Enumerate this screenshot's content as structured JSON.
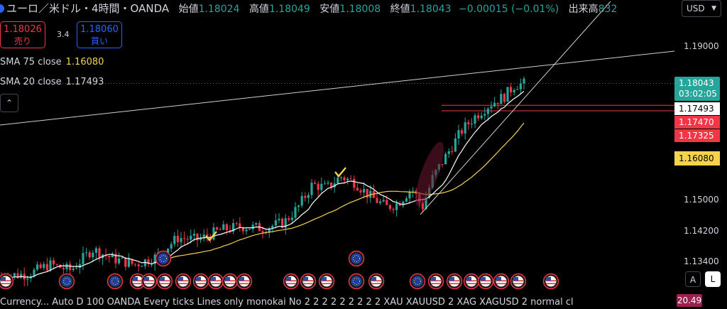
{
  "header": {
    "title": "ユーロ／米ドル・4時間・OANDA",
    "open_label": "始値",
    "open_value": "1.18024",
    "high_label": "高値",
    "high_value": "1.18049",
    "low_label": "安値",
    "low_value": "1.18008",
    "close_label": "終値",
    "close_value": "1.18043",
    "change": "−0.00015 (−0.01%)",
    "volume_label": "出来高",
    "volume_value": "832"
  },
  "trade": {
    "sell_price": "1.18026",
    "sell_label": "売り",
    "spread": "3.4",
    "buy_price": "1.18060",
    "buy_label": "買い"
  },
  "indicators": [
    {
      "name": "SMA 75 close",
      "value": "1.16080",
      "color": "#f5d34d"
    },
    {
      "name": "SMA 20 close",
      "value": "1.17493",
      "color": "#ffffff"
    }
  ],
  "collapse_icon": "chevron-up-icon",
  "currency": "USD",
  "axis_labels": [
    "1.19000",
    "1.15000",
    "1.14200",
    "1.13400"
  ],
  "price_tags": {
    "last_price": "1.18043",
    "countdown": "03:02:05",
    "sma20": "1.17493",
    "level_1": "1.17470",
    "level_2": "1.17325",
    "sma75": "1.16080",
    "last_color": "#26a69a",
    "level_color": "#f23645",
    "sma75_color": "#f5d34d"
  },
  "scale_buttons": {
    "auto_label": "A",
    "log_label": "L"
  },
  "bottom_bar": {
    "text": "Currency... Auto D 100 OANDA Every ticks Lines only monokai No 2 2 2 2 2 2 2 2 2 XAU XAUUSD 2 XAG XAGUSD 2 normal cl",
    "badge": "20.49"
  },
  "chart_data": {
    "type": "candlestick",
    "y_axis_labels": [
      "1.19000",
      "1.15000",
      "1.14200",
      "1.13400"
    ],
    "last_price": 1.18043,
    "horizontal_levels": [
      1.1747,
      1.17325
    ],
    "series": [
      {
        "name": "SMA 75 close",
        "last": 1.1608,
        "color": "#f5d34d"
      },
      {
        "name": "SMA 20 close",
        "last": 1.17493,
        "color": "#ffffff"
      }
    ],
    "up_color": "#26a69a",
    "down_color": "#f23645"
  }
}
